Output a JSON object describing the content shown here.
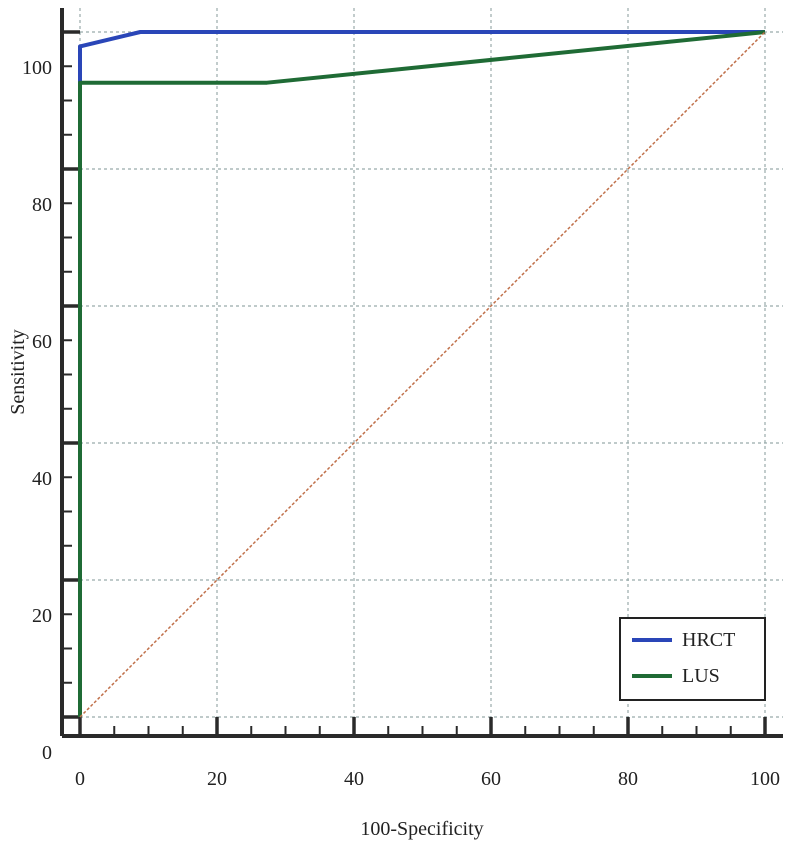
{
  "chart_data": {
    "type": "line",
    "title": "",
    "xlabel": "100-Specificity",
    "ylabel": "Sensitivity",
    "xlim": [
      0,
      100
    ],
    "ylim": [
      0,
      100
    ],
    "xticks": [
      0,
      20,
      40,
      60,
      80,
      100
    ],
    "yticks": [
      0,
      20,
      40,
      60,
      80,
      100
    ],
    "grid": true,
    "legend_position": "bottom-right",
    "series": [
      {
        "name": "HRCT",
        "color": "#2a46b8",
        "x": [
          0,
          0,
          8.8,
          100
        ],
        "y": [
          0,
          97.9,
          100,
          100
        ]
      },
      {
        "name": "LUS",
        "color": "#1f6b35",
        "x": [
          0,
          0,
          27.3,
          100
        ],
        "y": [
          0,
          92.6,
          92.6,
          100
        ]
      },
      {
        "name": "reference",
        "color": "#c0704a",
        "x": [
          0,
          100
        ],
        "y": [
          0,
          100
        ],
        "dashed": true
      }
    ]
  }
}
